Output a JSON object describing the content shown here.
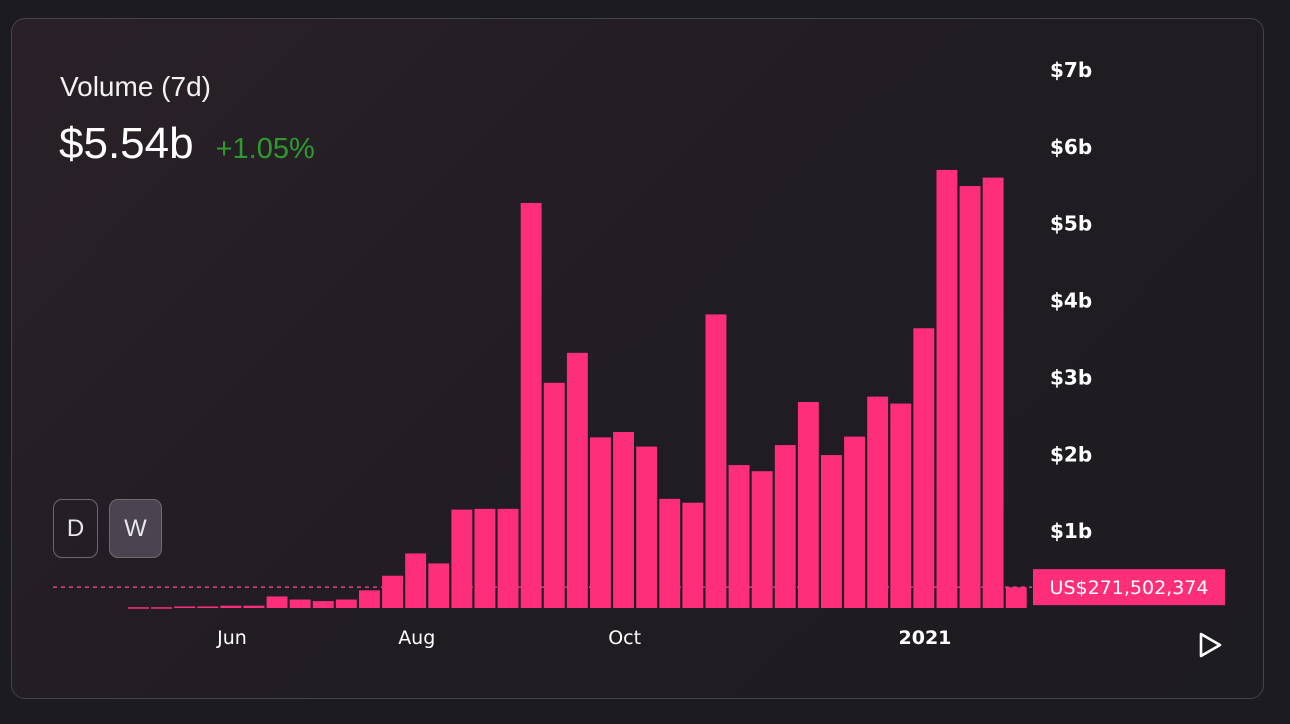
{
  "header": {
    "title": "Volume (7d)",
    "value": "$5.54b",
    "change": "+1.05%"
  },
  "toggles": {
    "day_label": "D",
    "week_label": "W",
    "selected": "W"
  },
  "play_icon": "play-icon",
  "colors": {
    "bar": "#ff2e78",
    "change": "#2e9a2e",
    "text": "#ffffff"
  },
  "chart_data": {
    "type": "bar",
    "unit": "USD billions",
    "title": "",
    "xlabel": "",
    "ylabel": "",
    "ylim": [
      0,
      7
    ],
    "y_ticks": [
      1,
      2,
      3,
      4,
      5,
      6,
      7
    ],
    "y_tick_labels": [
      "$1b",
      "$2b",
      "$3b",
      "$4b",
      "$5b",
      "$6b",
      "$7b"
    ],
    "x_ticks": [
      {
        "label": "Jun",
        "index": 4.5,
        "bold": false
      },
      {
        "label": "Aug",
        "index": 12.5,
        "bold": false
      },
      {
        "label": "Oct",
        "index": 21.5,
        "bold": false
      },
      {
        "label": "2021",
        "index": 34.5,
        "bold": true
      }
    ],
    "values": [
      0.01,
      0.01,
      0.02,
      0.02,
      0.03,
      0.03,
      0.15,
      0.11,
      0.09,
      0.11,
      0.23,
      0.42,
      0.71,
      0.58,
      1.28,
      1.29,
      1.29,
      5.27,
      2.93,
      3.32,
      2.22,
      2.29,
      2.1,
      1.42,
      1.37,
      3.82,
      1.86,
      1.78,
      2.12,
      2.68,
      1.99,
      2.23,
      2.75,
      2.66,
      3.64,
      5.7,
      5.49,
      5.6,
      0.27
    ],
    "hover_line": {
      "value": 0.2715,
      "label": "US$271,502,374"
    },
    "grid": false
  }
}
